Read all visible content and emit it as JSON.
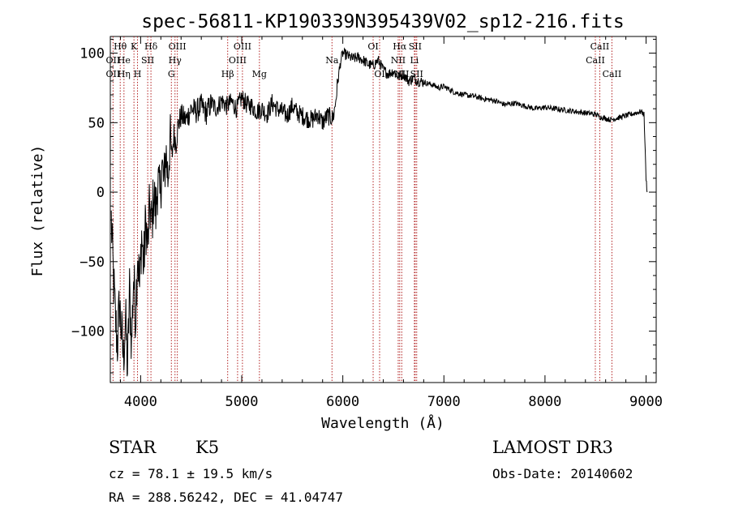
{
  "chart_data": {
    "type": "line",
    "title": "spec-56811-KP190339N395439V02_sp12-216.fits",
    "xlabel": "Wavelength (Å)",
    "ylabel": "Flux (relative)",
    "xlim": [
      3700,
      9100
    ],
    "ylim": [
      -137,
      112
    ],
    "xticks": [
      4000,
      5000,
      6000,
      7000,
      8000,
      9000
    ],
    "yticks": [
      -100,
      -50,
      0,
      50,
      100
    ],
    "x_tick_labels": [
      "4000",
      "5000",
      "6000",
      "7000",
      "8000",
      "9000"
    ],
    "y_tick_labels": [
      "−100",
      "−50",
      "0",
      "50",
      "100"
    ],
    "grid": false,
    "series": [
      {
        "line_color": "#000000",
        "x": [
          3710,
          3730,
          3750,
          3770,
          3790,
          3810,
          3830,
          3850,
          3870,
          3890,
          3910,
          3930,
          3950,
          3970,
          3990,
          4010,
          4030,
          4050,
          4070,
          4090,
          4110,
          4130,
          4150,
          4170,
          4190,
          4210,
          4230,
          4250,
          4270,
          4290,
          4310,
          4330,
          4350,
          4370,
          4400,
          4450,
          4500,
          4550,
          4600,
          4650,
          4700,
          4750,
          4800,
          4850,
          4900,
          4950,
          5000,
          5050,
          5100,
          5150,
          5200,
          5250,
          5300,
          5350,
          5400,
          5450,
          5500,
          5550,
          5600,
          5650,
          5700,
          5750,
          5800,
          5850,
          5900,
          5920,
          5940,
          5960,
          5980,
          6000,
          6050,
          6100,
          6150,
          6200,
          6250,
          6300,
          6350,
          6400,
          6450,
          6500,
          6550,
          6600,
          6650,
          6700,
          6750,
          6800,
          6850,
          6900,
          6950,
          7000,
          7100,
          7200,
          7300,
          7400,
          7500,
          7600,
          7700,
          7800,
          7900,
          8000,
          8100,
          8200,
          8300,
          8400,
          8500,
          8550,
          8600,
          8650,
          8700,
          8750,
          8800,
          8850,
          8900,
          8950,
          8980,
          9000,
          9010
        ],
        "y": [
          -20,
          -60,
          -90,
          -110,
          -80,
          -100,
          -120,
          -90,
          -128,
          -70,
          -110,
          -60,
          -90,
          -40,
          -70,
          -30,
          -55,
          -20,
          -40,
          -10,
          -25,
          0,
          -15,
          10,
          -5,
          20,
          5,
          30,
          10,
          38,
          25,
          42,
          35,
          48,
          55,
          52,
          60,
          58,
          62,
          57,
          64,
          60,
          66,
          62,
          65,
          60,
          68,
          63,
          62,
          58,
          60,
          56,
          64,
          60,
          58,
          55,
          62,
          57,
          55,
          53,
          52,
          56,
          50,
          55,
          53,
          60,
          73,
          85,
          95,
          100,
          98,
          96,
          97,
          95,
          92,
          91,
          95,
          88,
          85,
          87,
          83,
          85,
          80,
          82,
          80,
          79,
          78,
          77,
          75,
          76,
          72,
          70,
          69,
          67,
          66,
          63,
          64,
          62,
          60,
          61,
          60,
          59,
          58,
          57,
          56,
          54,
          53,
          52,
          53,
          54,
          55,
          56,
          57,
          58,
          56,
          10,
          0
        ]
      }
    ],
    "annotations": [
      {
        "label": "Hθ",
        "x": 3798,
        "row": 1
      },
      {
        "label": "OII",
        "x": 3727,
        "row": 2
      },
      {
        "label": "He",
        "x": 3835,
        "row": 2
      },
      {
        "label": "OII",
        "x": 3727,
        "row": 3
      },
      {
        "label": "Hη",
        "x": 3835,
        "row": 3
      },
      {
        "label": "K",
        "x": 3934,
        "row": 1
      },
      {
        "label": "SII",
        "x": 4070,
        "row": 2
      },
      {
        "label": "H",
        "x": 3969,
        "row": 3
      },
      {
        "label": "Hδ",
        "x": 4102,
        "row": 1
      },
      {
        "label": "OIII",
        "x": 4363,
        "row": 1
      },
      {
        "label": "Hγ",
        "x": 4340,
        "row": 2
      },
      {
        "label": "G",
        "x": 4304,
        "row": 3
      },
      {
        "label": "Hβ",
        "x": 4861,
        "row": 3
      },
      {
        "label": "OIII",
        "x": 5007,
        "row": 1
      },
      {
        "label": "OIII",
        "x": 4959,
        "row": 2
      },
      {
        "label": "Mg",
        "x": 5175,
        "row": 3
      },
      {
        "label": "Na",
        "x": 5893,
        "row": 2
      },
      {
        "label": "OI",
        "x": 6300,
        "row": 1
      },
      {
        "label": "OI",
        "x": 6364,
        "row": 3
      },
      {
        "label": "Hα",
        "x": 6563,
        "row": 1
      },
      {
        "label": "SII",
        "x": 6716,
        "row": 1
      },
      {
        "label": "NII",
        "x": 6548,
        "row": 2
      },
      {
        "label": "Li",
        "x": 6708,
        "row": 2
      },
      {
        "label": "NII",
        "x": 6583,
        "row": 3
      },
      {
        "label": "SII",
        "x": 6731,
        "row": 3
      },
      {
        "label": "CaII",
        "x": 8542,
        "row": 1
      },
      {
        "label": "CaII",
        "x": 8498,
        "row": 2
      },
      {
        "label": "CaII",
        "x": 8662,
        "row": 3
      }
    ],
    "line_color": "#b22222"
  },
  "info": {
    "class": "STAR",
    "subclass": "K5",
    "survey": "LAMOST DR3",
    "cz": "cz = 78.1 ± 19.5 km/s",
    "obs_date": "Obs-Date: 20140602",
    "radec": "RA = 288.56242, DEC =  41.04747"
  }
}
